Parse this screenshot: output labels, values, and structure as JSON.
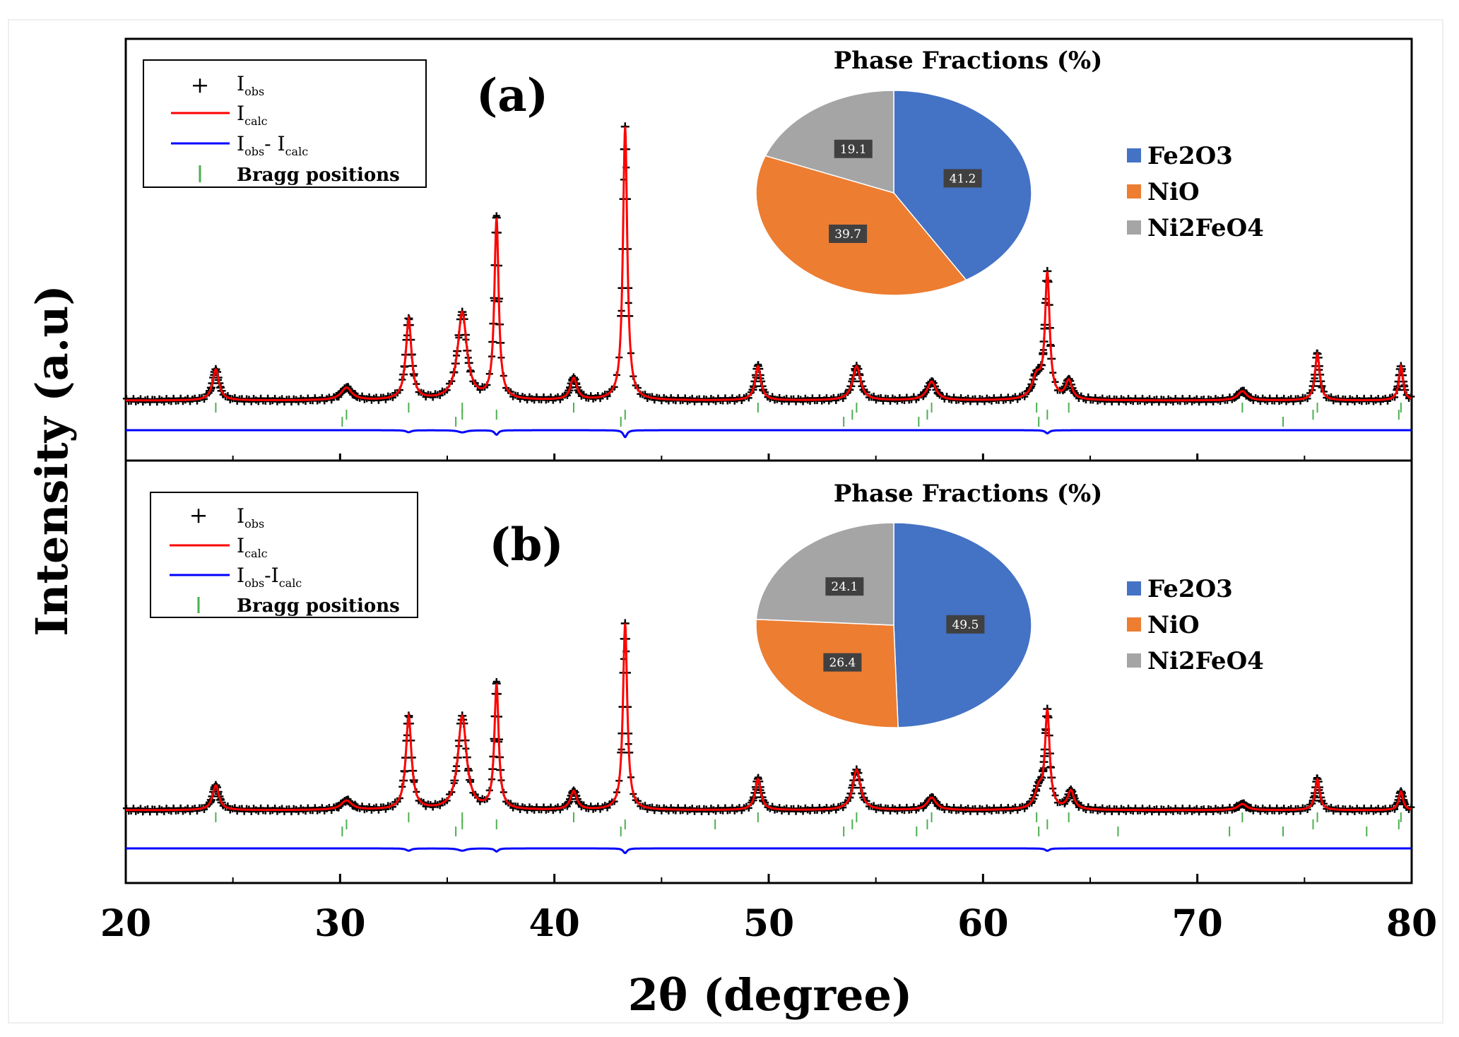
{
  "figure": {
    "xlabel": "2θ (degree)",
    "ylabel": "Intensity (a.u)",
    "xlim": [
      20,
      80
    ],
    "xticks": [
      20,
      30,
      40,
      50,
      60,
      70,
      80
    ]
  },
  "colors": {
    "obs": "#000000",
    "calc": "#ff0000",
    "diff": "#0000ff",
    "bragg": "#4caf50",
    "Fe2O3": "#4472c4",
    "NiO": "#ed7d31",
    "Ni2FeO4": "#a5a5a5"
  },
  "chart_data": [
    {
      "panel": "a",
      "type": "line",
      "label": "(a)",
      "xlim": [
        20,
        80
      ],
      "legend": {
        "obs": {
          "main": "I",
          "sub": "obs"
        },
        "calc": {
          "main": "I",
          "sub": "calc"
        },
        "diff": {
          "m1": "I",
          "s1": "obs",
          "mid": "- I",
          "s2": "calc"
        },
        "bragg": "Bragg positions"
      },
      "peaks": [
        {
          "x": 24.2,
          "h": 0.1,
          "w": 0.18
        },
        {
          "x": 30.3,
          "h": 0.04,
          "w": 0.3
        },
        {
          "x": 33.2,
          "h": 0.26,
          "w": 0.16
        },
        {
          "x": 35.7,
          "h": 0.28,
          "w": 0.26
        },
        {
          "x": 37.3,
          "h": 0.58,
          "w": 0.12
        },
        {
          "x": 40.9,
          "h": 0.07,
          "w": 0.18
        },
        {
          "x": 43.3,
          "h": 0.88,
          "w": 0.12
        },
        {
          "x": 49.5,
          "h": 0.11,
          "w": 0.16
        },
        {
          "x": 54.1,
          "h": 0.11,
          "w": 0.22
        },
        {
          "x": 57.6,
          "h": 0.06,
          "w": 0.25
        },
        {
          "x": 62.5,
          "h": 0.07,
          "w": 0.25
        },
        {
          "x": 63.0,
          "h": 0.4,
          "w": 0.13
        },
        {
          "x": 64.0,
          "h": 0.06,
          "w": 0.18
        },
        {
          "x": 72.1,
          "h": 0.03,
          "w": 0.25
        },
        {
          "x": 75.6,
          "h": 0.15,
          "w": 0.13
        },
        {
          "x": 79.5,
          "h": 0.11,
          "w": 0.12
        }
      ],
      "bragg_positions": [
        [
          24.2,
          33.2,
          35.7,
          40.9,
          49.5,
          54.1,
          57.6,
          62.5,
          64.0,
          72.1,
          75.6,
          79.5
        ],
        [
          30.3,
          35.7,
          37.3,
          43.3,
          53.9,
          57.4,
          63.0,
          75.4,
          79.4
        ],
        [
          30.1,
          35.4,
          43.1,
          53.5,
          57.0,
          62.6,
          74.0
        ]
      ],
      "pie": {
        "title": "Phase Fractions (%)",
        "slices": [
          {
            "label": "Fe2O3",
            "value": 41.2
          },
          {
            "label": "NiO",
            "value": 39.7
          },
          {
            "label": "Ni2FeO4",
            "value": 19.1
          }
        ],
        "data_labels": [
          "41.2",
          "39.7",
          "19.1"
        ]
      }
    },
    {
      "panel": "b",
      "type": "line",
      "label": "(b)",
      "xlim": [
        20,
        80
      ],
      "legend": {
        "obs": {
          "main": "I",
          "sub": "obs"
        },
        "calc": {
          "main": "I",
          "sub": "calc"
        },
        "diff": {
          "m1": "I",
          "s1": "obs",
          "mid": "-I",
          "s2": "calc"
        },
        "bragg": "Bragg positions"
      },
      "peaks": [
        {
          "x": 24.2,
          "h": 0.08,
          "w": 0.18
        },
        {
          "x": 30.3,
          "h": 0.03,
          "w": 0.3
        },
        {
          "x": 33.2,
          "h": 0.3,
          "w": 0.16
        },
        {
          "x": 35.7,
          "h": 0.3,
          "w": 0.24
        },
        {
          "x": 37.3,
          "h": 0.4,
          "w": 0.12
        },
        {
          "x": 40.9,
          "h": 0.06,
          "w": 0.18
        },
        {
          "x": 43.3,
          "h": 0.6,
          "w": 0.12
        },
        {
          "x": 49.5,
          "h": 0.1,
          "w": 0.16
        },
        {
          "x": 54.1,
          "h": 0.13,
          "w": 0.22
        },
        {
          "x": 57.6,
          "h": 0.04,
          "w": 0.25
        },
        {
          "x": 62.6,
          "h": 0.06,
          "w": 0.22
        },
        {
          "x": 63.0,
          "h": 0.31,
          "w": 0.13
        },
        {
          "x": 64.1,
          "h": 0.06,
          "w": 0.18
        },
        {
          "x": 72.1,
          "h": 0.02,
          "w": 0.25
        },
        {
          "x": 75.6,
          "h": 0.1,
          "w": 0.13
        },
        {
          "x": 79.5,
          "h": 0.06,
          "w": 0.12
        }
      ],
      "bragg_positions": [
        [
          24.2,
          33.2,
          35.7,
          40.9,
          49.5,
          54.1,
          57.6,
          62.5,
          64.0,
          72.1,
          75.6,
          79.5
        ],
        [
          30.3,
          35.7,
          37.3,
          43.3,
          47.5,
          53.9,
          57.4,
          63.0,
          75.4,
          79.4
        ],
        [
          30.1,
          35.4,
          43.1,
          53.5,
          56.9,
          62.6,
          66.3,
          71.5,
          74.0,
          77.9
        ]
      ],
      "pie": {
        "title": "Phase Fractions (%)",
        "slices": [
          {
            "label": "Fe2O3",
            "value": 49.5
          },
          {
            "label": "NiO",
            "value": 26.4
          },
          {
            "label": "Ni2FeO4",
            "value": 24.1
          }
        ],
        "data_labels": [
          "49.5",
          "26.4",
          "24.1"
        ]
      }
    }
  ]
}
